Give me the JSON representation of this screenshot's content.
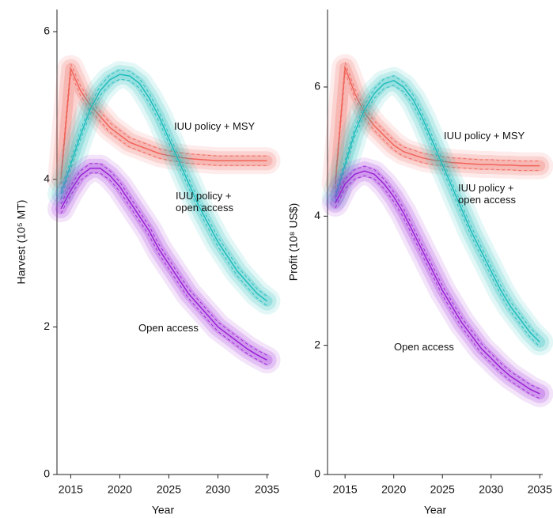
{
  "chart_data": [
    {
      "type": "line",
      "x_label": "Year",
      "y_label": "Harvest (10⁵ MT)",
      "x": [
        2014,
        2015,
        2016,
        2017,
        2018,
        2019,
        2020,
        2021,
        2022,
        2023,
        2024,
        2025,
        2026,
        2027,
        2028,
        2029,
        2030,
        2031,
        2032,
        2033,
        2034,
        2035
      ],
      "xlim": [
        2013.6,
        2035.2
      ],
      "xticks": [
        2015,
        2020,
        2025,
        2030,
        2035
      ],
      "ylim": [
        0,
        6.3
      ],
      "yticks": [
        0,
        2,
        4,
        6
      ],
      "series": [
        {
          "name": "IUU policy + MSY",
          "color": "#f0645a",
          "values": [
            4.0,
            5.5,
            5.2,
            5.0,
            4.85,
            4.7,
            4.6,
            4.5,
            4.45,
            4.4,
            4.35,
            4.32,
            4.3,
            4.28,
            4.27,
            4.26,
            4.25,
            4.25,
            4.25,
            4.25,
            4.25,
            4.25
          ]
        },
        {
          "name": "IUU policy + open access",
          "color": "#1fbcbc",
          "values": [
            3.8,
            4.2,
            4.6,
            4.95,
            5.2,
            5.35,
            5.42,
            5.4,
            5.3,
            5.1,
            4.85,
            4.55,
            4.25,
            3.95,
            3.65,
            3.4,
            3.15,
            2.95,
            2.75,
            2.6,
            2.45,
            2.35
          ]
        },
        {
          "name": "Open access",
          "color": "#9a22d6",
          "values": [
            3.6,
            3.85,
            4.05,
            4.15,
            4.15,
            4.05,
            3.9,
            3.7,
            3.5,
            3.3,
            3.05,
            2.85,
            2.65,
            2.45,
            2.3,
            2.15,
            2.0,
            1.9,
            1.8,
            1.7,
            1.62,
            1.55
          ]
        }
      ]
    },
    {
      "type": "line",
      "x_label": "Year",
      "y_label": "Profit (10⁸ US$)",
      "x": [
        2014,
        2015,
        2016,
        2017,
        2018,
        2019,
        2020,
        2021,
        2022,
        2023,
        2024,
        2025,
        2026,
        2027,
        2028,
        2029,
        2030,
        2031,
        2032,
        2033,
        2034,
        2035
      ],
      "xlim": [
        2013.2,
        2035.3
      ],
      "xticks": [
        2015,
        2020,
        2025,
        2030,
        2035
      ],
      "ylim": [
        0,
        7.2
      ],
      "yticks": [
        0,
        2,
        4,
        6
      ],
      "series": [
        {
          "name": "IUU policy + MSY",
          "color": "#f0645a",
          "values": [
            4.5,
            6.3,
            5.9,
            5.6,
            5.4,
            5.25,
            5.1,
            5.0,
            4.95,
            4.9,
            4.87,
            4.85,
            4.83,
            4.82,
            4.81,
            4.8,
            4.8,
            4.79,
            4.79,
            4.78,
            4.78,
            4.78
          ]
        },
        {
          "name": "IUU policy + open access",
          "color": "#1fbcbc",
          "values": [
            4.3,
            4.8,
            5.3,
            5.65,
            5.9,
            6.05,
            6.1,
            6.0,
            5.8,
            5.5,
            5.15,
            4.8,
            4.45,
            4.1,
            3.75,
            3.45,
            3.15,
            2.85,
            2.6,
            2.4,
            2.2,
            2.05
          ]
        },
        {
          "name": "Open access",
          "color": "#9a22d6",
          "values": [
            4.2,
            4.5,
            4.65,
            4.7,
            4.65,
            4.5,
            4.3,
            4.05,
            3.75,
            3.45,
            3.15,
            2.85,
            2.6,
            2.35,
            2.15,
            1.95,
            1.8,
            1.65,
            1.52,
            1.42,
            1.32,
            1.25
          ]
        }
      ]
    }
  ]
}
